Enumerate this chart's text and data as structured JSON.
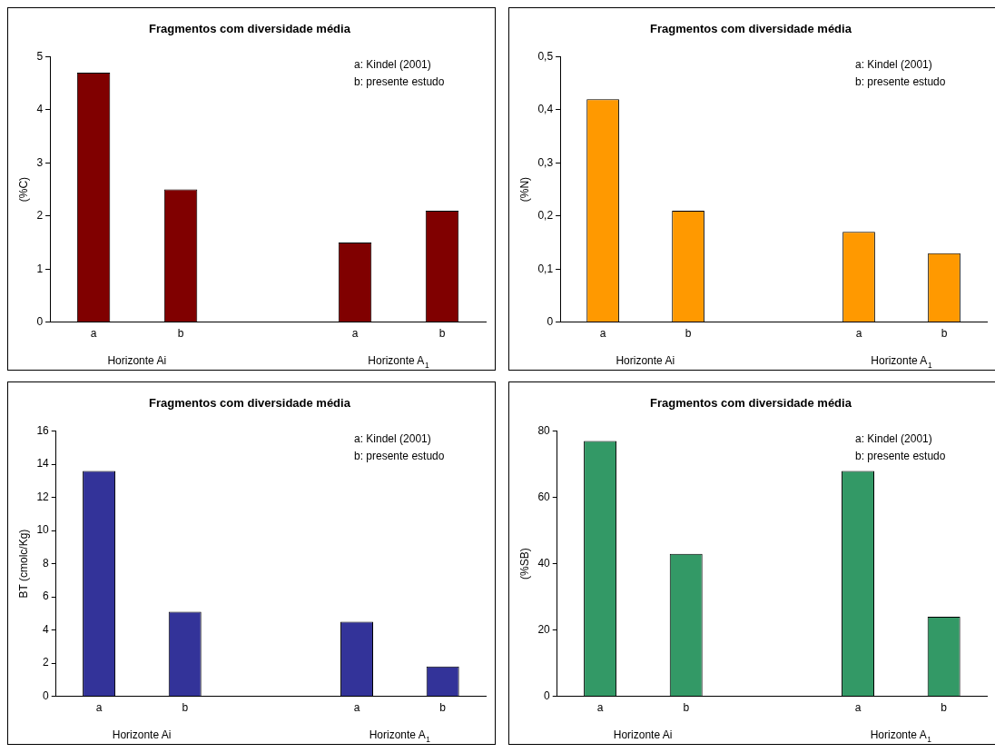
{
  "chart_data": [
    {
      "type": "bar",
      "title": "Fragmentos com diversidade média",
      "ylabel": "(%C)",
      "categories": [
        "a",
        "b",
        null,
        "a",
        "b"
      ],
      "values": [
        4.7,
        2.5,
        null,
        1.5,
        2.1
      ],
      "color": "#800000",
      "ylim": [
        0,
        5
      ],
      "yticks": [
        0,
        1,
        2,
        3,
        4,
        5
      ],
      "grid": false,
      "legend": false,
      "annotations": [
        "a: Kindel (2001)",
        "b: presente estudo",
        "Horizonte Ai",
        "Horizonte A$_{1}$"
      ]
    },
    {
      "type": "bar",
      "title": "Fragmentos com diversidade média",
      "ylabel": "(%N)",
      "categories": [
        "a",
        "b",
        null,
        "a",
        "b"
      ],
      "values": [
        0.42,
        0.21,
        null,
        0.17,
        0.13
      ],
      "color": "#ff9900",
      "ylim": [
        0,
        0.5
      ],
      "yticks": [
        0,
        {
          "value": 0.1,
          "label": "0,1"
        },
        {
          "value": 0.2,
          "label": "0,2"
        },
        {
          "value": 0.3,
          "label": "0,3"
        },
        {
          "value": 0.4,
          "label": "0,4"
        },
        {
          "value": 0.5,
          "label": "0,5"
        }
      ],
      "grid": false,
      "legend": false,
      "annotations": [
        "a: Kindel (2001)",
        "b: presente estudo",
        "Horizonte Ai",
        "Horizonte A$_{1}$"
      ]
    },
    {
      "type": "bar",
      "title": "Fragmentos com diversidade média",
      "ylabel": "BT (cmolc/Kg)",
      "categories": [
        "a",
        "b",
        null,
        "a",
        "b"
      ],
      "values": [
        13.6,
        5.1,
        null,
        4.5,
        1.8
      ],
      "color": "#333399",
      "ylim": [
        0,
        16
      ],
      "yticks": [
        0,
        2,
        4,
        6,
        8,
        10,
        12,
        14,
        16
      ],
      "grid": false,
      "legend": false,
      "annotations": [
        "a: Kindel (2001)",
        "b: presente estudo",
        "Horizonte Ai",
        "Horizonte A$_{1}$"
      ]
    },
    {
      "type": "bar",
      "title": "Fragmentos com diversidade média",
      "ylabel": "(%SB)",
      "categories": [
        "a",
        "b",
        null,
        "a",
        "b"
      ],
      "values": [
        77,
        43,
        null,
        68,
        24
      ],
      "color": "#339966",
      "ylim": [
        0,
        80
      ],
      "yticks": [
        0,
        20,
        40,
        60,
        80
      ],
      "grid": false,
      "legend": false,
      "annotations": [
        "a: Kindel (2001)",
        "b: presente estudo",
        "Horizonte Ai",
        "Horizonte A$_{1}$"
      ]
    }
  ]
}
